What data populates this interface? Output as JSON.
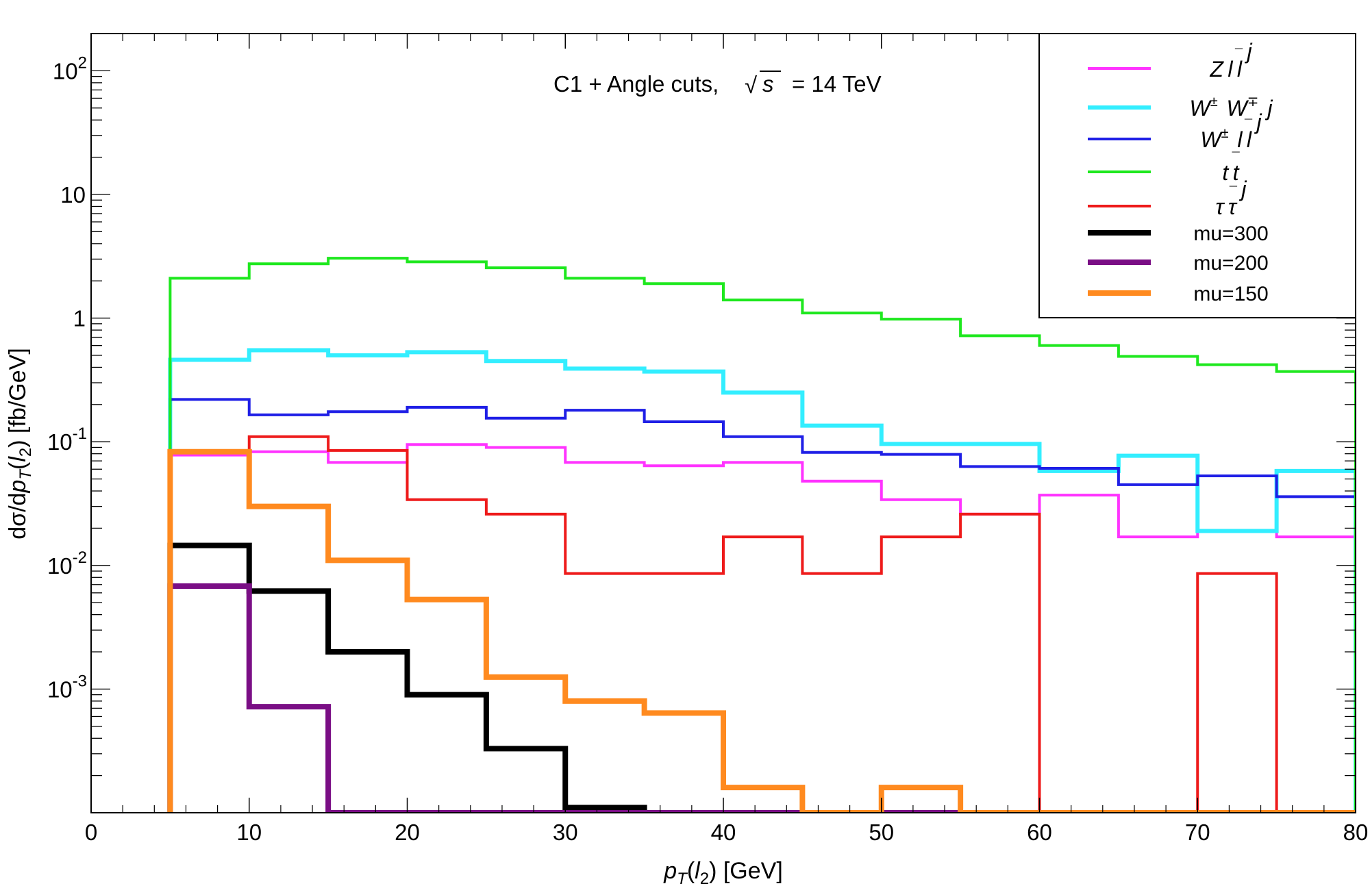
{
  "chart_data": {
    "type": "step-histogram",
    "title": "C1 + Angle cuts,",
    "title_energy": "= 14 TeV",
    "title_sqrt_symbol": "√",
    "title_sqrt_arg": "s",
    "xlabel": {
      "var": "p",
      "sub": "T",
      "open": "(",
      "lvar": "l",
      "lsub": "2",
      "close": ")",
      "unit": " [GeV]"
    },
    "ylabel": {
      "prefix": "dσ/d",
      "var": "p",
      "sub": "T",
      "open": "(",
      "lvar": "l",
      "lsub": "2",
      "close": ")",
      "unit": " [fb/GeV]"
    },
    "xlim": [
      0,
      80
    ],
    "ylim": [
      0.0001,
      200
    ],
    "yscale": "log",
    "x_ticks": [
      0,
      10,
      20,
      30,
      40,
      50,
      60,
      70,
      80
    ],
    "x_tick_labels": [
      "0",
      "10",
      "20",
      "30",
      "40",
      "50",
      "60",
      "70",
      "80"
    ],
    "y_ticks": [
      {
        "value": 100,
        "base": "10",
        "exp": "2"
      },
      {
        "value": 10,
        "base": "10",
        "exp": ""
      },
      {
        "value": 1,
        "base": "1",
        "exp": ""
      },
      {
        "value": 0.1,
        "base": "10",
        "exp": "-1"
      },
      {
        "value": 0.01,
        "base": "10",
        "exp": "-2"
      },
      {
        "value": 0.001,
        "base": "10",
        "exp": "-3"
      }
    ],
    "legend_position": "top-right",
    "bin_edges": [
      5,
      10,
      15,
      20,
      25,
      30,
      35,
      40,
      45,
      50,
      55,
      60,
      65,
      70,
      75,
      80
    ],
    "series": [
      {
        "name": "Z l l̄ j",
        "legend": [
          {
            "t": "Z l l",
            "bar": ""
          },
          {
            "t": "j"
          }
        ],
        "legend_parts": [
          "Z",
          "l",
          "l",
          "j"
        ],
        "bar_on": [
          2
        ],
        "sup": {},
        "color": "#ff33ff",
        "linewidth": 4,
        "values": [
          0.078,
          0.083,
          0.068,
          0.095,
          0.09,
          0.068,
          0.064,
          0.068,
          0.048,
          0.034,
          0.026,
          0.037,
          0.017,
          0.019,
          0.017
        ]
      },
      {
        "name": "W± W∓ j",
        "legend_parts": [
          "W",
          "W",
          "j"
        ],
        "bar_on": [],
        "sup": {
          "0": "±",
          "1": "∓"
        },
        "color": "#33eeff",
        "linewidth": 6,
        "values": [
          0.46,
          0.55,
          0.5,
          0.53,
          0.45,
          0.39,
          0.37,
          0.25,
          0.135,
          0.096,
          0.096,
          0.058,
          0.077,
          0.019,
          0.058
        ]
      },
      {
        "name": "W± l l̄ j",
        "legend_parts": [
          "W",
          "l",
          "l",
          "j"
        ],
        "bar_on": [
          2
        ],
        "sup": {
          "0": "±"
        },
        "color": "#1f1fe6",
        "linewidth": 4,
        "values": [
          0.22,
          0.165,
          0.175,
          0.19,
          0.155,
          0.18,
          0.145,
          0.11,
          0.082,
          0.079,
          0.063,
          0.061,
          0.045,
          0.053,
          0.036
        ]
      },
      {
        "name": "t t̄",
        "legend_parts": [
          "t",
          "t"
        ],
        "bar_on": [
          1
        ],
        "sup": {},
        "color": "#1ee81e",
        "linewidth": 4,
        "values": [
          2.1,
          2.75,
          3.05,
          2.85,
          2.55,
          2.1,
          1.9,
          1.4,
          1.1,
          0.98,
          0.72,
          0.6,
          0.49,
          0.42,
          0.37
        ]
      },
      {
        "name": "τ τ̄ j",
        "legend_parts": [
          "τ",
          "τ",
          "j"
        ],
        "bar_on": [
          1
        ],
        "sup": {},
        "color": "#ee1a1a",
        "linewidth": 4,
        "values": [
          0.082,
          0.11,
          0.085,
          0.034,
          0.026,
          0.0086,
          0.0086,
          0.017,
          0.0086,
          0.017,
          0.026,
          0.0001,
          0.0001,
          0.0086,
          0.0001
        ]
      },
      {
        "name": "mu=300",
        "color": "#000000",
        "linewidth": 8,
        "values": [
          0.0145,
          0.0062,
          0.002,
          0.0009,
          0.00033,
          0.00011,
          0.0001,
          0.0001,
          0.0001,
          0.0001,
          0.0001,
          0.0001,
          0.0001,
          0.0001,
          0.0001
        ]
      },
      {
        "name": "mu=200",
        "color": "#7a0e85",
        "linewidth": 8,
        "values": [
          0.0068,
          0.00072,
          0.0001,
          0.0001,
          0.0001,
          0.0001,
          0.0001,
          0.0001,
          0.0001,
          0.0001,
          0.0001,
          0.0001,
          0.0001,
          0.0001,
          0.0001
        ]
      },
      {
        "name": "mu=150",
        "color": "#ff8a1f",
        "linewidth": 8,
        "values": [
          0.083,
          0.03,
          0.011,
          0.0053,
          0.00125,
          0.0008,
          0.00064,
          0.00016,
          0.0001,
          0.00016,
          0.0001,
          0.0001,
          0.0001,
          0.0001,
          0.0001
        ]
      }
    ]
  }
}
